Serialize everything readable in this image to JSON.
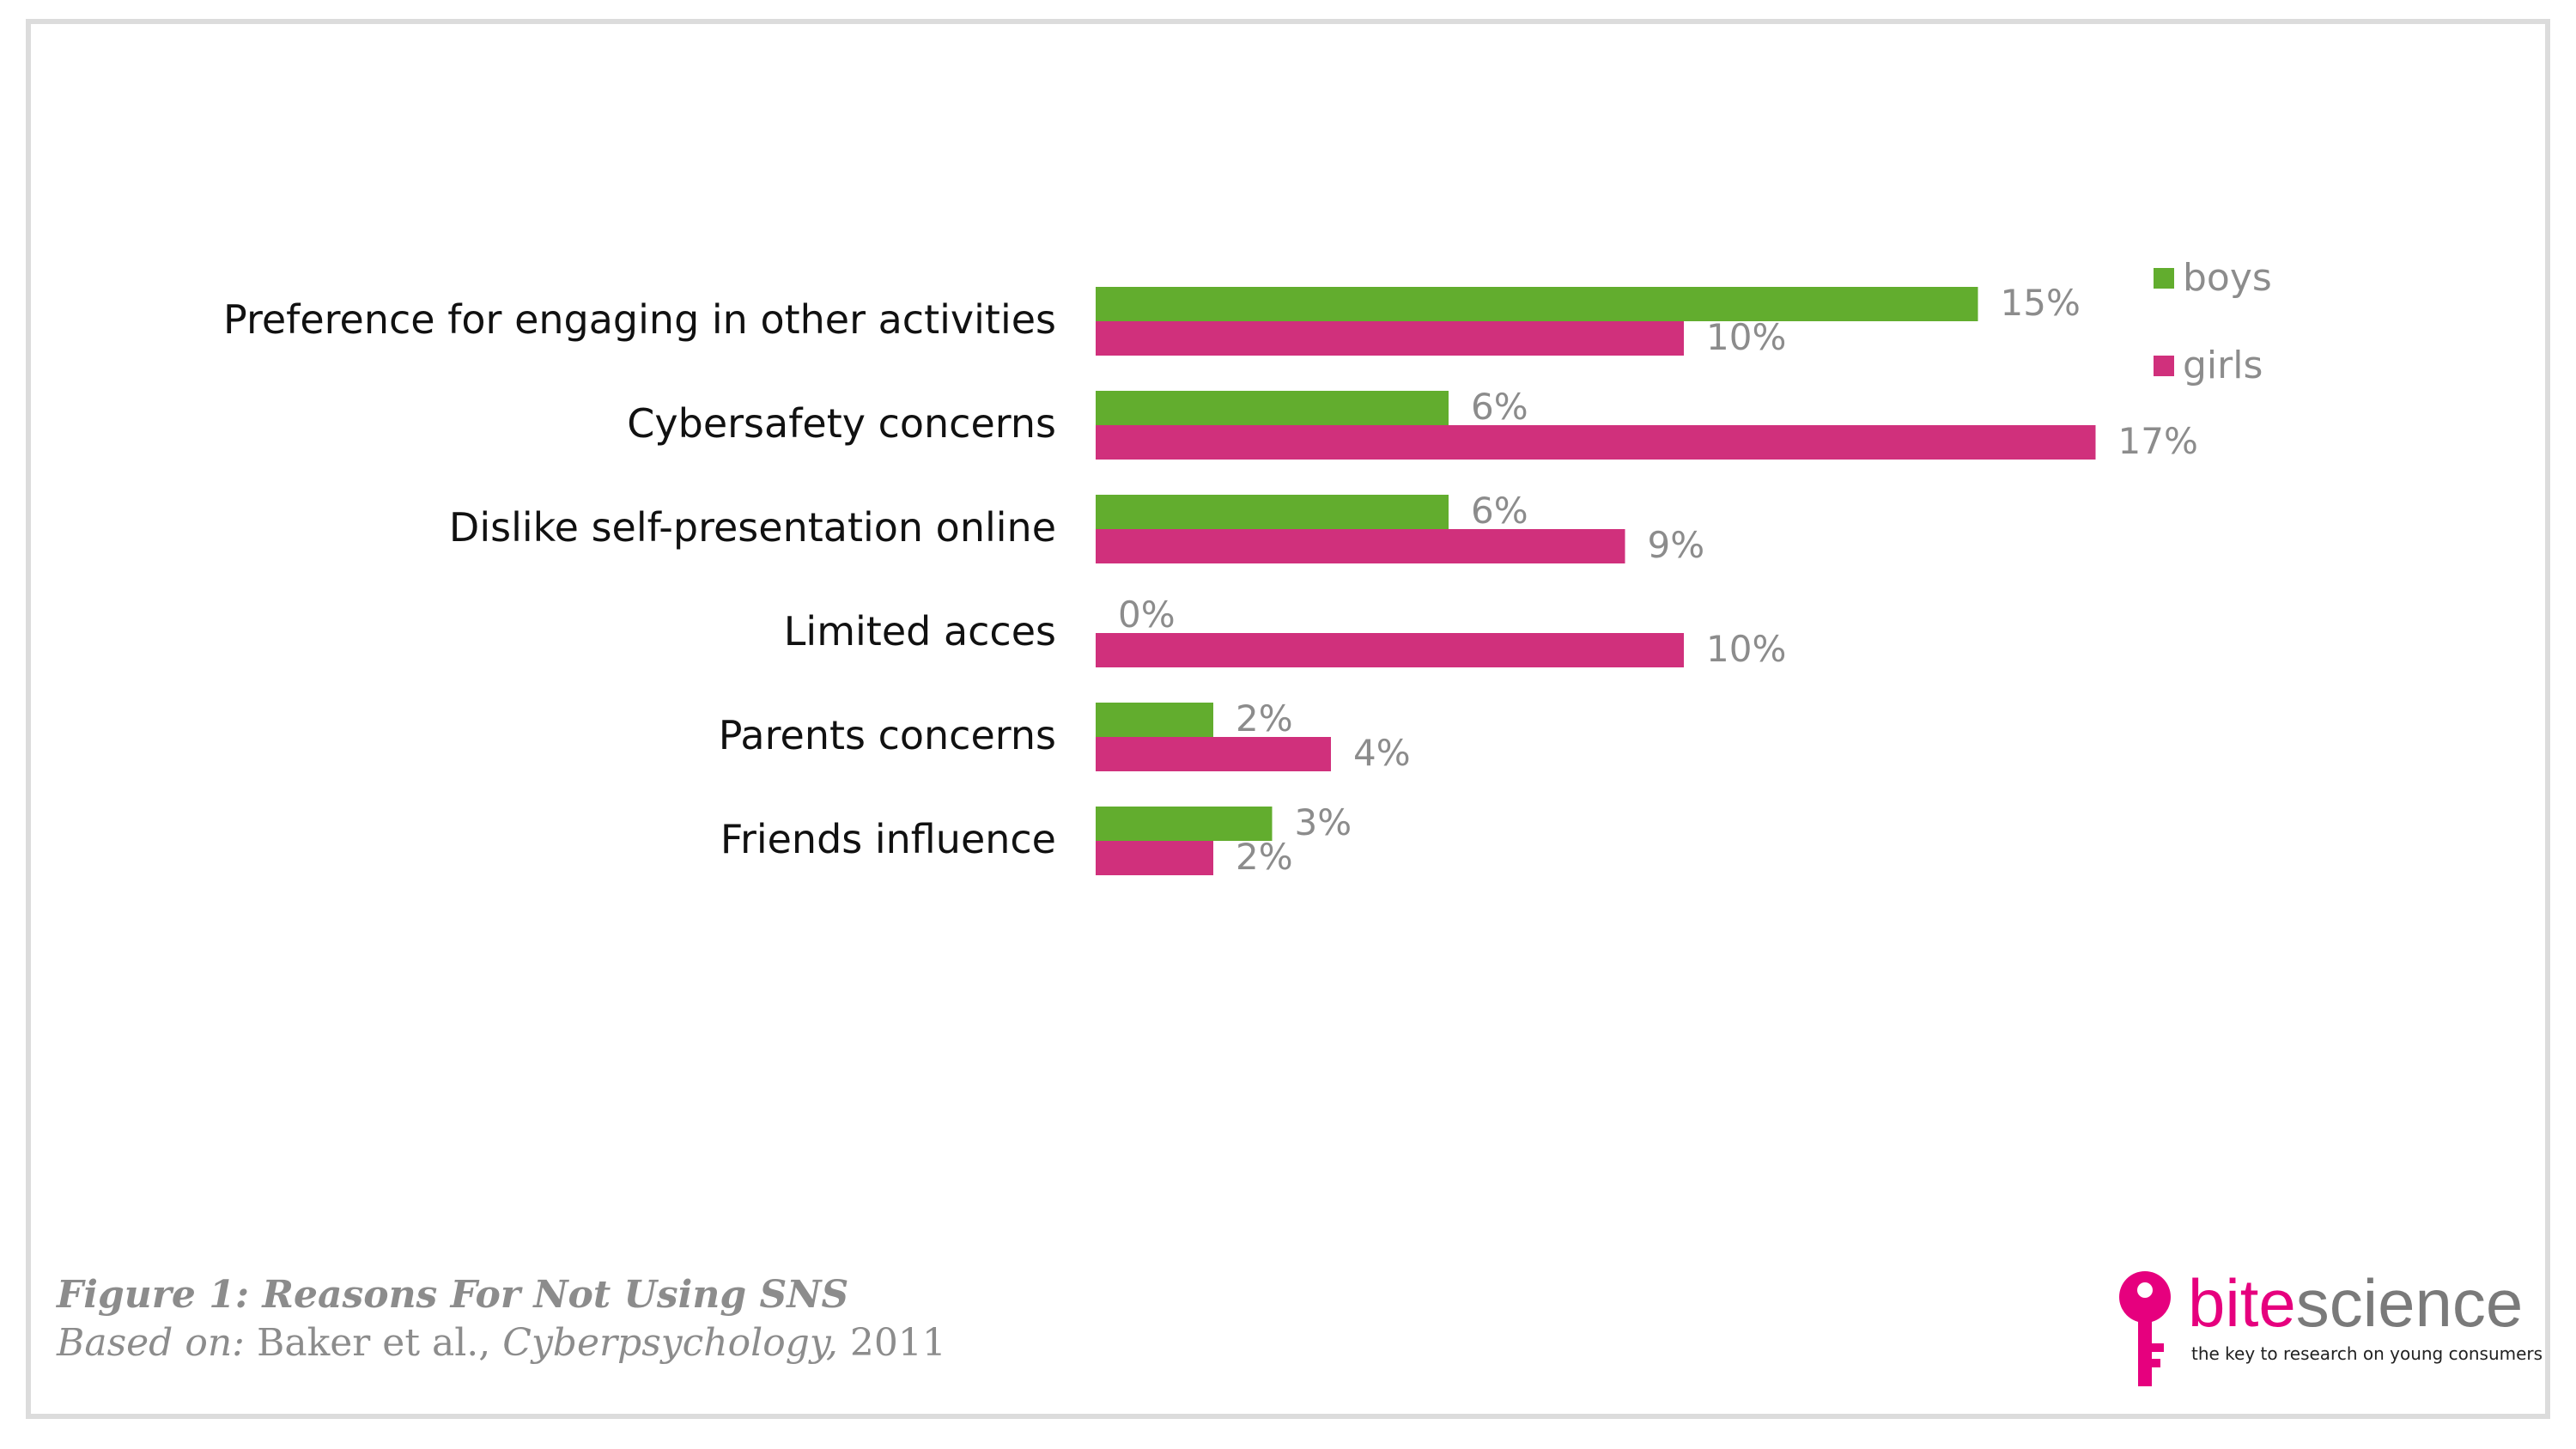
{
  "chart_data": {
    "type": "bar",
    "orientation": "horizontal",
    "categories": [
      "Preference for engaging in other activities",
      "Cybersafety concerns",
      "Dislike self-presentation online",
      "Limited acces",
      "Parents concerns",
      "Friends influence"
    ],
    "series": [
      {
        "name": "boys",
        "values": [
          15,
          6,
          6,
          0,
          2,
          3
        ],
        "color": "#62ad2e"
      },
      {
        "name": "girls",
        "values": [
          10,
          17,
          9,
          10,
          4,
          2
        ],
        "color": "#d0307c"
      }
    ],
    "value_labels": {
      "boys": [
        "15%",
        "6%",
        "6%",
        "0%",
        "2%",
        "3%"
      ],
      "girls": [
        "10%",
        "17%",
        "9%",
        "10%",
        "4%",
        "2%"
      ]
    },
    "xlim": [
      0,
      20
    ],
    "grid": false,
    "legend": "top-right",
    "label_color": "#8c8c8c"
  },
  "caption": {
    "title": "Figure 1: Reasons For Not Using SNS",
    "based_prefix": "Based on:",
    "authors": "Baker et al.,",
    "journal": "Cyberpsychology,",
    "year": "2011"
  },
  "logo": {
    "word_part1": "bite",
    "word_part2": "science",
    "tagline": "the key to research on young consumers",
    "icon": "key-icon"
  }
}
